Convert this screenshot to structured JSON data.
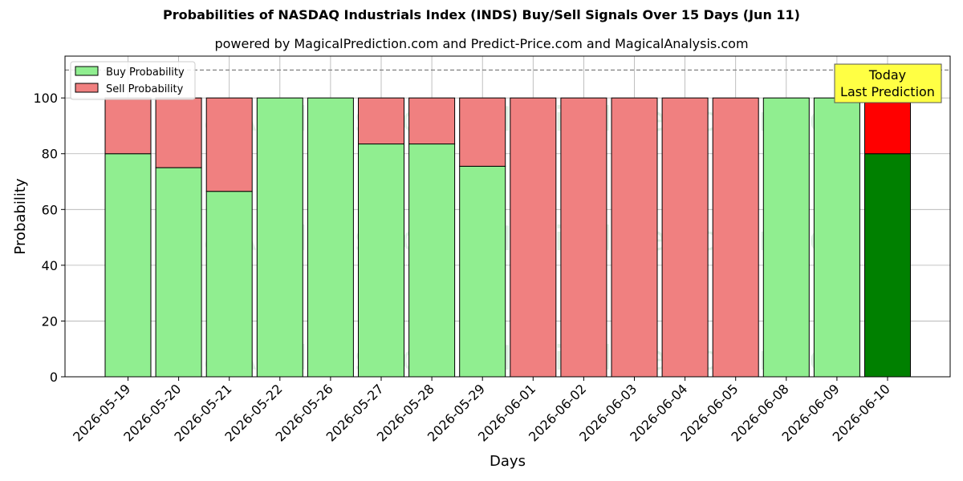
{
  "chart_data": {
    "type": "bar",
    "stacked": true,
    "title": "Probabilities of NASDAQ Industrials Index (INDS) Buy/Sell Signals Over 15 Days (Jun 11)",
    "subtitle": "powered by MagicalPrediction.com and Predict-Price.com and MagicalAnalysis.com",
    "xlabel": "Days",
    "ylabel": "Probability",
    "ylim": [
      0,
      115
    ],
    "yticks": [
      0,
      20,
      40,
      60,
      80,
      100
    ],
    "grid": true,
    "legend_position": "top-left",
    "reference_line": 110,
    "categories": [
      "2026-05-19",
      "2026-05-20",
      "2026-05-21",
      "2026-05-22",
      "2026-05-26",
      "2026-05-27",
      "2026-05-28",
      "2026-05-29",
      "2026-06-01",
      "2026-06-02",
      "2026-06-03",
      "2026-06-04",
      "2026-06-05",
      "2026-06-08",
      "2026-06-09",
      "2026-06-10"
    ],
    "series": [
      {
        "name": "Buy Probability",
        "color": "#90ee90",
        "highlight_color": "#008000",
        "values": [
          80,
          75,
          66.5,
          100,
          100,
          83.5,
          83.5,
          75.5,
          0,
          0,
          0,
          0,
          0,
          100,
          100,
          80
        ]
      },
      {
        "name": "Sell Probability",
        "color": "#f08080",
        "highlight_color": "#ff0000",
        "values": [
          20,
          25,
          33.5,
          0,
          0,
          16.5,
          16.5,
          24.5,
          100,
          100,
          100,
          100,
          100,
          0,
          0,
          20
        ]
      }
    ],
    "highlight_index": 15,
    "annotation": {
      "lines": [
        "Today",
        "Last Prediction"
      ],
      "color": "#ffff44"
    },
    "watermarks": [
      "MagicalAnalysis.com",
      "MagicalPrediction.com"
    ]
  }
}
